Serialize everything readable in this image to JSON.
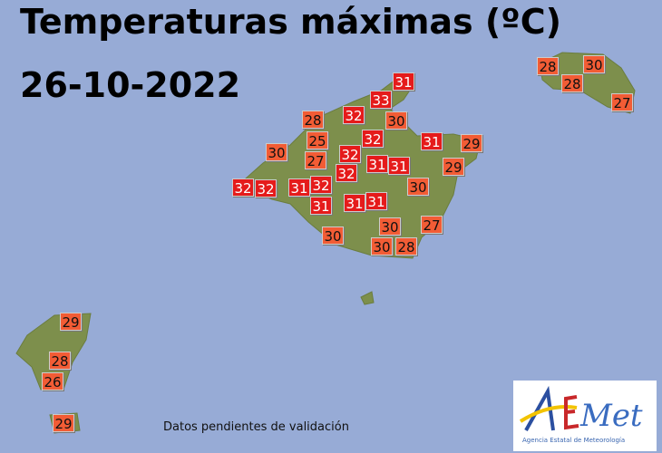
{
  "title_line1": "Temperaturas máximas (ºC)",
  "title_line2": "26-10-2022",
  "note": "Datos pendientes de validación",
  "logo": {
    "text": "AEMet",
    "subtitle": "Agencia Estatal de Meteorología"
  },
  "colors": {
    "sea": "#97abd6",
    "land": "#7d8f4c",
    "hot_label": "#e51b1b",
    "warm_label": "#f25c35"
  },
  "stations": [
    {
      "island": "Mallorca",
      "value": 31
    },
    {
      "island": "Mallorca",
      "value": 33
    },
    {
      "island": "Mallorca",
      "value": 32
    },
    {
      "island": "Mallorca",
      "value": 28
    },
    {
      "island": "Mallorca",
      "value": 30
    },
    {
      "island": "Mallorca",
      "value": 25
    },
    {
      "island": "Mallorca",
      "value": 32
    },
    {
      "island": "Mallorca",
      "value": 31
    },
    {
      "island": "Mallorca",
      "value": 29
    },
    {
      "island": "Mallorca",
      "value": 30
    },
    {
      "island": "Mallorca",
      "value": 27
    },
    {
      "island": "Mallorca",
      "value": 32
    },
    {
      "island": "Mallorca",
      "value": 31
    },
    {
      "island": "Mallorca",
      "value": 31
    },
    {
      "island": "Mallorca",
      "value": 29
    },
    {
      "island": "Mallorca",
      "value": 32
    },
    {
      "island": "Mallorca",
      "value": 32
    },
    {
      "island": "Mallorca",
      "value": 32
    },
    {
      "island": "Mallorca",
      "value": 31
    },
    {
      "island": "Mallorca",
      "value": 32
    },
    {
      "island": "Mallorca",
      "value": 31
    },
    {
      "island": "Mallorca",
      "value": 31
    },
    {
      "island": "Mallorca",
      "value": 31
    },
    {
      "island": "Mallorca",
      "value": 30
    },
    {
      "island": "Mallorca",
      "value": 27
    },
    {
      "island": "Mallorca",
      "value": 30
    },
    {
      "island": "Mallorca",
      "value": 30
    },
    {
      "island": "Mallorca",
      "value": 30
    },
    {
      "island": "Mallorca",
      "value": 28
    },
    {
      "island": "Menorca",
      "value": 28
    },
    {
      "island": "Menorca",
      "value": 30
    },
    {
      "island": "Menorca",
      "value": 28
    },
    {
      "island": "Menorca",
      "value": 27
    },
    {
      "island": "Ibiza",
      "value": 29
    },
    {
      "island": "Ibiza",
      "value": 28
    },
    {
      "island": "Ibiza",
      "value": 26
    },
    {
      "island": "Formentera",
      "value": 29
    }
  ]
}
